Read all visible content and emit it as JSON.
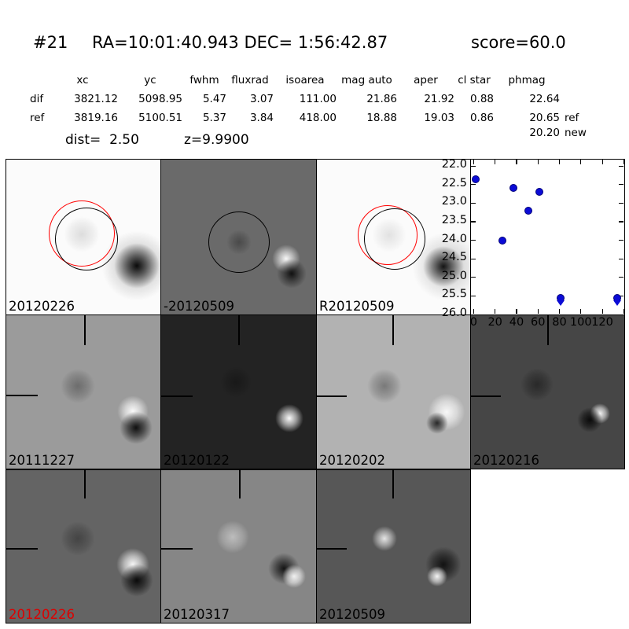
{
  "header": {
    "id": "#21",
    "coords": "RA=10:01:40.943 DEC= 1:56:42.87",
    "score": "score=60.0"
  },
  "photometry_table": {
    "columns": [
      "xc",
      "yc",
      "fwhm",
      "fluxrad",
      "isoarea",
      "mag auto",
      "aper",
      "cl star",
      "phmag"
    ],
    "rows": [
      {
        "label": "dif",
        "xc": "3821.12",
        "yc": "5098.95",
        "fwhm": "5.47",
        "fluxrad": "3.07",
        "isoarea": "111.00",
        "mag_auto": "21.86",
        "aper": "21.92",
        "cl_star": "0.88",
        "phmag": "22.64",
        "suffix": ""
      },
      {
        "label": "ref",
        "xc": "3819.16",
        "yc": "5100.51",
        "fwhm": "5.37",
        "fluxrad": "3.84",
        "isoarea": "418.00",
        "mag_auto": "18.88",
        "aper": "19.03",
        "cl_star": "0.86",
        "phmag": "20.65",
        "suffix": "ref"
      }
    ],
    "extra_phmag": {
      "value": "20.20",
      "suffix": "new"
    },
    "dist": "dist=  2.50",
    "z": "z=9.9900"
  },
  "cutouts": [
    {
      "label": "20120226",
      "bg": "#fbfbfb",
      "label_color": "#000000"
    },
    {
      "label": "-20120509",
      "bg": "#6a6a6a",
      "label_color": "#000000"
    },
    {
      "label": "R20120509",
      "bg": "#fbfbfb",
      "label_color": "#000000"
    },
    {
      "label": "20111227",
      "bg": "#9b9b9b",
      "label_color": "#000000"
    },
    {
      "label": "20120122",
      "bg": "#232323",
      "label_color": "#000000"
    },
    {
      "label": "20120202",
      "bg": "#b2b2b2",
      "label_color": "#000000"
    },
    {
      "label": "20120216",
      "bg": "#464646",
      "label_color": "#000000"
    },
    {
      "label": "20120226",
      "bg": "#646464",
      "label_color": "#dd0000"
    },
    {
      "label": "20120317",
      "bg": "#868686",
      "label_color": "#000000"
    },
    {
      "label": "20120509",
      "bg": "#575757",
      "label_color": "#000000"
    }
  ],
  "colors": {
    "aperture_new": "#ff0000",
    "aperture_ref": "#000000",
    "marker_blue": "#0b0bd6",
    "marker_edge": "#00007a"
  },
  "chart_data": {
    "type": "scatter",
    "title": "",
    "xlabel": "",
    "ylabel": "",
    "grid": false,
    "legend": null,
    "x_axis": {
      "lim": [
        -2.5,
        140.5
      ],
      "ticks": [
        0,
        20,
        40,
        60,
        80,
        100,
        120,
        140
      ],
      "tick_labels": [
        "0",
        "20",
        "40",
        "60",
        "80",
        "100",
        "120",
        ""
      ]
    },
    "y_axis": {
      "lim": [
        21.83,
        26.0
      ],
      "inverted": true,
      "ticks": [
        22.0,
        22.5,
        23.0,
        23.5,
        24.0,
        24.5,
        25.0,
        25.5,
        26.0
      ],
      "tick_labels": [
        "22.0",
        "22.5",
        "23.0",
        "23.5",
        "24.0",
        "24.5",
        "25.0",
        "25.5",
        "26.0"
      ]
    },
    "series": [
      {
        "name": "magnitude-vs-epoch",
        "marker": "circle",
        "color": "#0b0bd6",
        "points": [
          [
            2,
            22.35
          ],
          [
            27,
            24.0
          ],
          [
            37,
            22.6
          ],
          [
            51,
            23.2
          ],
          [
            61,
            22.7
          ]
        ]
      }
    ],
    "upper_limits": {
      "marker": "circle-down-arrow",
      "color": "#0b0bd6",
      "points": [
        [
          81,
          25.55
        ],
        [
          134,
          25.55
        ]
      ]
    }
  }
}
